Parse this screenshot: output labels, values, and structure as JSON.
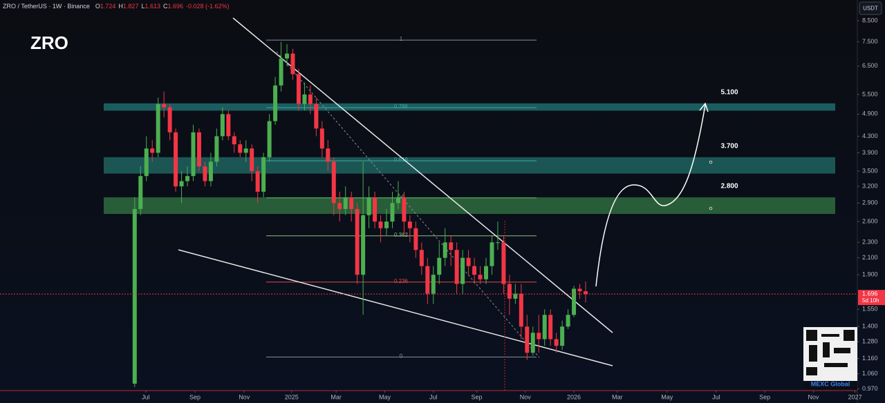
{
  "chart_data": {
    "type": "candlestick",
    "title": "ZRO",
    "symbol": "ZRO / TetherUS · 1W · Binance",
    "ohlc_letters": [
      "O",
      "H",
      "L",
      "C"
    ],
    "change": "-0.028 (-1.62%)",
    "currency": "USDT",
    "countdown": "5d 10h",
    "watermark": "MEXC Global",
    "up_color": "#4caf50",
    "down_color": "#f23645",
    "log_scale": true,
    "ylim": [
      0.96,
      9.6
    ],
    "yticks": [
      {
        "value": 8.5,
        "label": "8.500"
      },
      {
        "value": 7.5,
        "label": "7.500"
      },
      {
        "value": 6.5,
        "label": "6.500"
      },
      {
        "value": 5.5,
        "label": "5.500"
      },
      {
        "value": 4.9,
        "label": "4.900"
      },
      {
        "value": 4.3,
        "label": "4.300"
      },
      {
        "value": 3.9,
        "label": "3.900"
      },
      {
        "value": 3.5,
        "label": "3.500"
      },
      {
        "value": 3.2,
        "label": "3.200"
      },
      {
        "value": 2.9,
        "label": "2.900"
      },
      {
        "value": 2.6,
        "label": "2.600"
      },
      {
        "value": 2.3,
        "label": "2.300"
      },
      {
        "value": 2.1,
        "label": "2.100"
      },
      {
        "value": 1.9,
        "label": "1.900"
      },
      {
        "value": 1.55,
        "label": "1.550"
      },
      {
        "value": 1.4,
        "label": "1.400"
      },
      {
        "value": 1.28,
        "label": "1.280"
      },
      {
        "value": 1.16,
        "label": "1.160"
      },
      {
        "value": 1.06,
        "label": "1.060"
      },
      {
        "value": 0.97,
        "label": "0.970"
      }
    ],
    "xlim": [
      -23,
      123.4
    ],
    "xticks": [
      {
        "value": 1.9,
        "label": "Jul"
      },
      {
        "value": 10.3,
        "label": "Sep"
      },
      {
        "value": 18.7,
        "label": "Nov"
      },
      {
        "value": 26.8,
        "label": "2025"
      },
      {
        "value": 34.4,
        "label": "Mar"
      },
      {
        "value": 42.7,
        "label": "May"
      },
      {
        "value": 51.0,
        "label": "Jul"
      },
      {
        "value": 58.4,
        "label": "Sep"
      },
      {
        "value": 66.7,
        "label": "Nov"
      },
      {
        "value": 75.0,
        "label": "2026"
      },
      {
        "value": 82.4,
        "label": "Mar"
      },
      {
        "value": 90.9,
        "label": "May"
      },
      {
        "value": 99.3,
        "label": "Jul"
      },
      {
        "value": 107.6,
        "label": "Sep"
      },
      {
        "value": 115.9,
        "label": "Nov"
      },
      {
        "value": 123.0,
        "label": "2027"
      }
    ],
    "open": [
      1.0,
      2.8,
      3.4,
      4.0,
      3.9,
      5.2,
      5.1,
      4.4,
      3.2,
      3.3,
      3.4,
      4.4,
      3.6,
      3.3,
      3.7,
      4.3,
      4.9,
      4.3,
      4.1,
      3.9,
      4.0,
      3.5,
      3.1,
      3.8,
      4.7,
      5.8,
      6.8,
      7.0,
      6.2,
      5.2,
      5.5,
      5.2,
      4.5,
      4.0,
      3.7,
      2.9,
      2.8,
      3.0,
      2.8,
      1.9,
      2.7,
      3.0,
      2.6,
      2.5,
      2.6,
      2.9,
      3.0,
      2.6,
      2.5,
      2.2,
      2.0,
      1.7,
      1.9,
      2.1,
      2.3,
      2.2,
      1.8,
      2.1,
      2.0,
      1.9,
      1.85,
      2.0,
      2.3,
      2.3,
      1.8,
      1.65,
      1.7,
      1.4,
      1.2,
      1.35,
      1.3,
      1.5,
      1.3,
      1.25,
      1.4,
      1.5,
      1.75,
      1.724
    ],
    "high": [
      3.0,
      3.6,
      4.3,
      4.2,
      5.4,
      5.6,
      5.2,
      4.5,
      3.5,
      3.6,
      4.6,
      4.5,
      3.7,
      3.9,
      4.5,
      5.1,
      5.0,
      4.4,
      4.2,
      4.2,
      4.1,
      3.6,
      3.9,
      4.9,
      6.1,
      7.5,
      7.4,
      7.2,
      6.4,
      5.9,
      5.8,
      5.4,
      4.7,
      4.2,
      3.8,
      3.1,
      3.2,
      3.1,
      2.9,
      3.7,
      3.2,
      3.1,
      2.7,
      2.8,
      3.1,
      3.3,
      3.1,
      2.7,
      2.6,
      2.3,
      2.1,
      2.0,
      2.3,
      2.5,
      2.4,
      2.3,
      2.2,
      2.2,
      2.1,
      2.0,
      2.1,
      2.4,
      2.6,
      2.4,
      1.9,
      1.8,
      1.8,
      1.5,
      1.4,
      1.5,
      1.55,
      1.55,
      1.35,
      1.45,
      1.55,
      1.78,
      1.8,
      1.827
    ],
    "low": [
      0.98,
      2.7,
      3.3,
      3.7,
      3.8,
      4.8,
      4.2,
      3.1,
      2.9,
      3.2,
      3.3,
      3.5,
      3.2,
      3.2,
      3.6,
      4.2,
      4.2,
      3.9,
      3.8,
      3.7,
      3.3,
      2.9,
      3.0,
      3.7,
      4.6,
      5.6,
      6.5,
      6.0,
      5.0,
      5.0,
      4.9,
      4.3,
      3.8,
      3.5,
      2.7,
      2.6,
      2.7,
      2.6,
      1.8,
      1.5,
      2.5,
      2.5,
      2.3,
      2.4,
      2.5,
      2.8,
      2.4,
      2.3,
      2.1,
      1.9,
      1.6,
      1.6,
      1.8,
      2.0,
      2.0,
      1.7,
      1.7,
      1.9,
      1.8,
      1.8,
      1.8,
      1.9,
      2.2,
      1.7,
      1.5,
      1.6,
      1.3,
      1.15,
      1.18,
      1.2,
      1.25,
      1.25,
      1.2,
      1.22,
      1.38,
      1.48,
      1.65,
      1.613
    ],
    "close": [
      2.8,
      3.4,
      4.0,
      3.9,
      5.2,
      5.1,
      4.4,
      3.2,
      3.3,
      3.4,
      4.4,
      3.6,
      3.3,
      3.7,
      4.3,
      4.9,
      4.3,
      4.1,
      3.9,
      4.0,
      3.5,
      3.1,
      3.8,
      4.7,
      5.8,
      6.8,
      7.0,
      6.2,
      5.2,
      5.5,
      5.2,
      4.5,
      4.0,
      3.7,
      2.9,
      2.8,
      3.0,
      2.8,
      1.9,
      2.7,
      3.0,
      2.6,
      2.5,
      2.6,
      2.9,
      3.0,
      2.6,
      2.5,
      2.2,
      2.0,
      1.7,
      1.9,
      2.1,
      2.3,
      2.2,
      1.8,
      2.1,
      2.0,
      1.9,
      1.85,
      2.0,
      2.3,
      2.3,
      1.8,
      1.65,
      1.7,
      1.4,
      1.2,
      1.35,
      1.3,
      1.5,
      1.3,
      1.25,
      1.4,
      1.5,
      1.75,
      1.724,
      1.696
    ],
    "fib_levels": [
      {
        "label": "1",
        "price": 7.58,
        "color": "#8a8f98"
      },
      {
        "label": "0.786",
        "price": 5.09,
        "color": "#3fa8a0"
      },
      {
        "label": "0.618",
        "price": 3.72,
        "color": "#3fa8a0"
      },
      {
        "label": "0.5",
        "price": 2.99,
        "color": "#5cb85c"
      },
      {
        "label": "0.382",
        "price": 2.39,
        "color": "#8fbf7f"
      },
      {
        "label": "0.236",
        "price": 1.82,
        "color": "#e04848"
      },
      {
        "label": "0",
        "price": 1.17,
        "color": "#8a8f98"
      }
    ],
    "zones": [
      {
        "label": "5.100",
        "low": 5.0,
        "high": 5.22,
        "color": "#1f6b6b"
      },
      {
        "label": "3.700",
        "low": 3.45,
        "high": 3.8,
        "color": "#1f6360"
      },
      {
        "label": "2.800",
        "low": 2.72,
        "high": 3.0,
        "color": "#2f6a3e"
      }
    ]
  }
}
